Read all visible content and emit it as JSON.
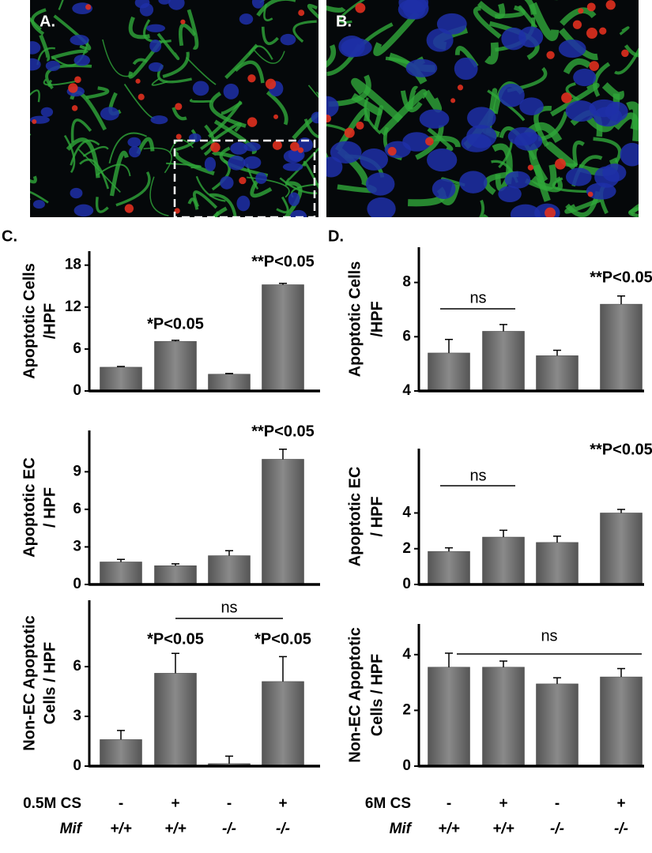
{
  "panels": {
    "a": "A.",
    "b": "B.",
    "c": "C.",
    "d": "D."
  },
  "chart_data": [
    {
      "type": "bar",
      "ylabel": [
        "Apoptotic Cells",
        "/HPF"
      ],
      "ylim": [
        0,
        20
      ],
      "yticks": [
        0,
        6,
        12,
        18
      ],
      "values": [
        3.4,
        7.1,
        2.4,
        15.2
      ],
      "errors": [
        0.1,
        0.15,
        0.1,
        0.2
      ],
      "color": "#777777",
      "annotations": [
        {
          "text": "*P<0.05"
        },
        {
          "text": "**P<0.05"
        }
      ]
    },
    {
      "type": "bar",
      "ylabel": [
        "Apoptotic EC",
        "/ HPF"
      ],
      "ylim": [
        0,
        12.3
      ],
      "yticks": [
        0,
        3,
        6,
        9
      ],
      "values": [
        1.8,
        1.5,
        2.3,
        10.0
      ],
      "errors": [
        0.2,
        0.15,
        0.4,
        0.8
      ],
      "color": "#777777",
      "annotations": [
        {
          "text": "**P<0.05"
        }
      ]
    },
    {
      "type": "bar",
      "ylabel": [
        "Non-EC Apoptotic",
        "Cells / HPF"
      ],
      "ylim": [
        0,
        10
      ],
      "yticks": [
        0,
        3,
        6
      ],
      "values": [
        1.6,
        5.6,
        0.15,
        5.1
      ],
      "errors": [
        0.55,
        1.2,
        0.45,
        1.5
      ],
      "color": "#777777",
      "annotations": [
        {
          "text": "ns"
        },
        {
          "text": "*P<0.05"
        },
        {
          "text": "*P<0.05"
        }
      ],
      "category_rows": [
        {
          "name": "0.5M CS",
          "labels": [
            "-",
            "+",
            "-",
            "+"
          ]
        },
        {
          "name": "Mif",
          "labels": [
            "+/+",
            "+/+",
            "-/-",
            "-/-"
          ]
        }
      ]
    },
    {
      "type": "bar",
      "ylabel": [
        "Apoptotic Cells",
        "/HPF"
      ],
      "ylim": [
        4,
        9.3
      ],
      "yticks": [
        4,
        6,
        8
      ],
      "values": [
        5.4,
        6.2,
        5.3,
        7.2
      ],
      "errors": [
        0.5,
        0.25,
        0.2,
        0.3
      ],
      "color": "#777777",
      "annotations": [
        {
          "text": "ns"
        },
        {
          "text": "**P<0.05"
        }
      ]
    },
    {
      "type": "bar",
      "ylabel": [
        "Apoptotic EC",
        "/ HPF"
      ],
      "ylim": [
        0,
        7.6
      ],
      "yticks": [
        0,
        2,
        4
      ],
      "values": [
        1.85,
        2.65,
        2.35,
        4.0
      ],
      "errors": [
        0.2,
        0.38,
        0.35,
        0.2
      ],
      "color": "#777777",
      "annotations": [
        {
          "text": "ns"
        },
        {
          "text": "**P<0.05"
        }
      ]
    },
    {
      "type": "bar",
      "ylabel": [
        "Non-EC Apoptotic",
        "Cells / HPF"
      ],
      "ylim": [
        0,
        5.1
      ],
      "yticks": [
        0,
        2,
        4
      ],
      "values": [
        3.55,
        3.55,
        2.95,
        3.2
      ],
      "errors": [
        0.5,
        0.22,
        0.22,
        0.3
      ],
      "color": "#777777",
      "annotations": [
        {
          "text": "ns"
        }
      ],
      "category_rows": [
        {
          "name": "6M CS",
          "labels": [
            "-",
            "+",
            "-",
            "+"
          ]
        },
        {
          "name": "Mif",
          "labels": [
            "+/+",
            "+/+",
            "-/-",
            "-/-"
          ]
        }
      ]
    }
  ]
}
